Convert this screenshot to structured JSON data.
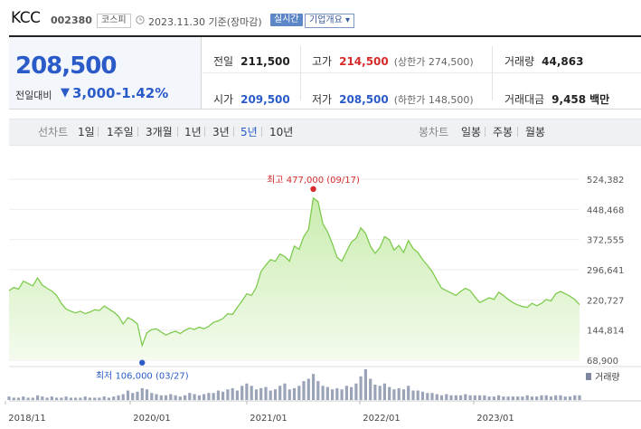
{
  "header": {
    "name": "KCC",
    "code": "002380",
    "market": "코스피",
    "date": "2023.11.30 기준(장마감)",
    "realtime_button": "실시간",
    "company_info_button": "기업개요 ▾"
  },
  "price": {
    "current": "208,500",
    "change_label": "전일대비",
    "change_arrow": "▼",
    "change_value": "3,000",
    "change_rate": "-1.42%"
  },
  "stats": {
    "prev_close_label": "전일",
    "prev_close": "211,500",
    "high_label": "고가",
    "high": "214,500",
    "upper_limit": "(상한가 274,500)",
    "volume_label": "거래량",
    "volume": "44,863",
    "open_label": "시가",
    "open": "209,500",
    "low_label": "저가",
    "low": "208,500",
    "lower_limit": "(하한가 148,500)",
    "amount_label": "거래대금",
    "amount": "9,458",
    "amount_unit": "백만"
  },
  "tabs": {
    "line_label": "선차트",
    "periods": [
      "1일",
      "1주일",
      "3개월",
      "1년",
      "3년",
      "5년",
      "10년"
    ],
    "active_period": "5년",
    "candle_label": "봉차트",
    "candles": [
      "일봉",
      "주봉",
      "월봉"
    ]
  },
  "colors": {
    "accent_blue": "#2a5bc9",
    "red": "#d72b2b",
    "line_green": "#7ecb4e",
    "area_green": "#c9ecae"
  },
  "chart_data": {
    "type": "area",
    "title": "",
    "x_labels": [
      "2018/11",
      "2020/01",
      "2021/01",
      "2022/01",
      "2023/01"
    ],
    "y_ticks": [
      524382,
      448468,
      372555,
      296641,
      220727,
      144814,
      68900
    ],
    "y_tick_labels": [
      "524,382",
      "448,468",
      "372,555",
      "296,641",
      "220,727",
      "144,814",
      "68,900"
    ],
    "ylim": [
      68900,
      524382
    ],
    "volume_label": "거래량",
    "annotations": {
      "high_text": "최고 477,000 (09/17)",
      "low_text": "최저 106,000 (03/27)"
    },
    "series": [
      {
        "values": [
          244000,
          252000,
          248000,
          268000,
          262000,
          256000,
          276000,
          258000,
          250000,
          243000,
          232000,
          212000,
          198000,
          192000,
          188000,
          192000,
          186000,
          190000,
          196000,
          194000,
          205000,
          198000,
          190000,
          180000,
          160000,
          176000,
          170000,
          160000,
          106000,
          138000,
          146000,
          148000,
          140000,
          132000,
          138000,
          142000,
          136000,
          144000,
          150000,
          146000,
          152000,
          148000,
          154000,
          164000,
          168000,
          174000,
          186000,
          184000,
          202000,
          218000,
          236000,
          232000,
          252000,
          292000,
          308000,
          322000,
          318000,
          336000,
          330000,
          318000,
          356000,
          348000,
          380000,
          398000,
          477000,
          468000,
          412000,
          392000,
          362000,
          328000,
          318000,
          342000,
          366000,
          376000,
          402000,
          388000,
          356000,
          338000,
          352000,
          380000,
          372000,
          346000,
          358000,
          340000,
          370000,
          350000,
          340000,
          322000,
          308000,
          292000,
          270000,
          250000,
          244000,
          238000,
          232000,
          242000,
          250000,
          244000,
          228000,
          214000,
          220000,
          226000,
          222000,
          240000,
          232000,
          222000,
          214000,
          208000,
          204000,
          202000,
          212000,
          206000,
          212000,
          222000,
          218000,
          236000,
          242000,
          236000,
          230000,
          222000,
          208500
        ],
        "volumes": [
          3,
          2,
          2,
          3,
          2,
          2,
          4,
          3,
          2,
          3,
          2,
          2,
          3,
          2,
          2,
          2,
          3,
          2,
          2,
          2,
          3,
          2,
          3,
          4,
          5,
          8,
          6,
          7,
          10,
          9,
          6,
          5,
          4,
          4,
          5,
          4,
          3,
          4,
          6,
          5,
          4,
          5,
          6,
          6,
          8,
          7,
          9,
          10,
          8,
          12,
          14,
          12,
          9,
          10,
          11,
          8,
          9,
          12,
          14,
          9,
          10,
          12,
          16,
          18,
          22,
          16,
          12,
          11,
          9,
          10,
          9,
          12,
          11,
          14,
          20,
          26,
          18,
          13,
          12,
          14,
          11,
          9,
          10,
          9,
          12,
          8,
          8,
          7,
          6,
          6,
          5,
          4,
          5,
          4,
          4,
          4,
          5,
          4,
          4,
          4,
          4,
          3,
          3,
          4,
          3,
          3,
          3,
          3,
          3,
          4,
          3,
          3,
          4,
          4,
          3,
          4,
          4,
          3,
          3,
          4,
          4
        ]
      }
    ]
  }
}
